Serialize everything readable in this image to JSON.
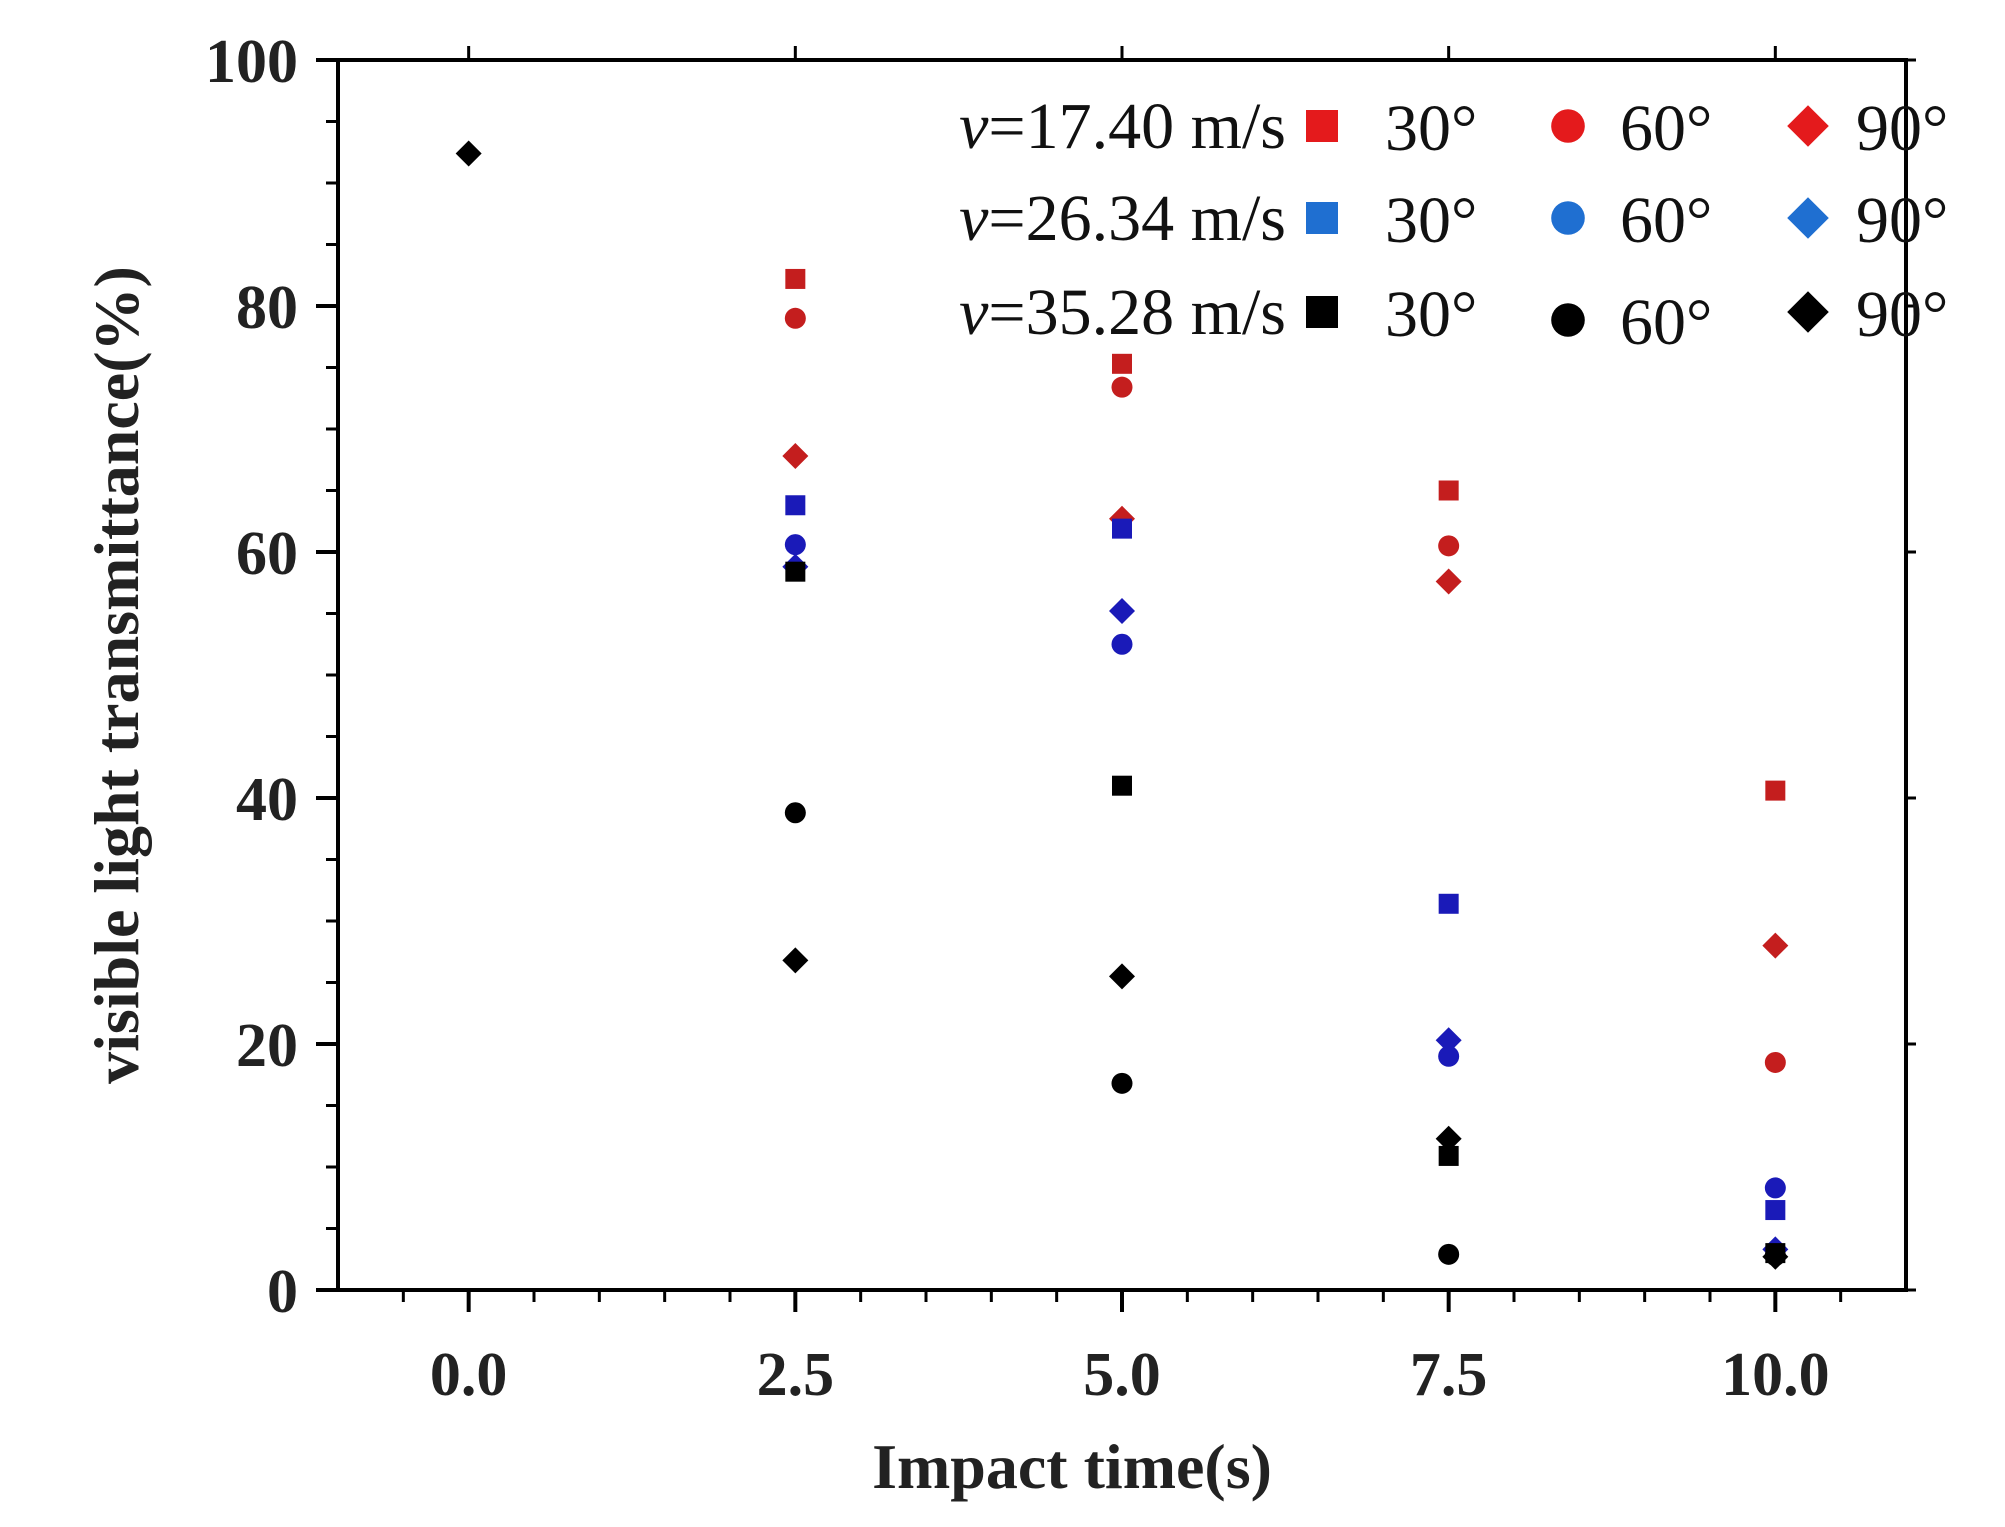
{
  "chart_data": {
    "type": "scatter",
    "title": "",
    "xlabel": "Impact time(s)",
    "ylabel": "visible light transmittance(%)",
    "xlim": [
      -1.0,
      11.0
    ],
    "ylim": [
      0,
      100
    ],
    "x_ticks": [
      "0.0",
      "2.5",
      "5.0",
      "7.5",
      "10.0"
    ],
    "x_tick_values": [
      0,
      2.5,
      5,
      7.5,
      10
    ],
    "y_ticks": [
      "0",
      "20",
      "40",
      "60",
      "80",
      "100"
    ],
    "y_tick_values": [
      0,
      20,
      40,
      60,
      80,
      100
    ],
    "legend_position": "top-right",
    "legend_rows": [
      {
        "prefix": "v",
        "label": "=17.40 m/s",
        "color": "#e41a1c",
        "entries": [
          {
            "marker": "square",
            "angle": "30°"
          },
          {
            "marker": "circle",
            "angle": "60°"
          },
          {
            "marker": "diamond",
            "angle": "90°"
          }
        ]
      },
      {
        "prefix": "v",
        "label": "=26.34 m/s",
        "color": "#1f6fd1",
        "entries": [
          {
            "marker": "square",
            "angle": "30°"
          },
          {
            "marker": "circle",
            "angle": "60°"
          },
          {
            "marker": "diamond",
            "angle": "90°"
          }
        ]
      },
      {
        "prefix": "v",
        "label": "=35.28 m/s",
        "color": "#000000",
        "entries": [
          {
            "marker": "square",
            "angle": "30°"
          },
          {
            "marker": "circle",
            "angle": "60°"
          },
          {
            "marker": "diamond",
            "angle": "90°"
          }
        ]
      }
    ],
    "series": [
      {
        "name": "v=17.40 m/s 30°",
        "marker": "square",
        "color": "#c41e1e",
        "x": [
          2.5,
          5,
          7.5,
          10
        ],
        "y": [
          82.2,
          75.3,
          65.0,
          40.6
        ]
      },
      {
        "name": "v=17.40 m/s 60°",
        "marker": "circle",
        "color": "#c41e1e",
        "x": [
          2.5,
          5,
          7.5,
          10
        ],
        "y": [
          79.0,
          73.4,
          60.5,
          18.5
        ]
      },
      {
        "name": "v=17.40 m/s 90°",
        "marker": "diamond",
        "color": "#c41e1e",
        "x": [
          2.5,
          5,
          7.5,
          10
        ],
        "y": [
          67.8,
          62.7,
          57.6,
          28.0
        ]
      },
      {
        "name": "v=26.34 m/s 30°",
        "marker": "square",
        "color": "#1a1ab8",
        "x": [
          2.5,
          5,
          7.5,
          10
        ],
        "y": [
          63.8,
          61.9,
          31.4,
          6.5
        ]
      },
      {
        "name": "v=26.34 m/s 60°",
        "marker": "circle",
        "color": "#1a1ab8",
        "x": [
          2.5,
          5,
          7.5,
          10
        ],
        "y": [
          60.6,
          52.5,
          19.0,
          8.3
        ]
      },
      {
        "name": "v=26.34 m/s 90°",
        "marker": "diamond",
        "color": "#1a1ab8",
        "x": [
          2.5,
          5,
          7.5,
          10
        ],
        "y": [
          58.8,
          55.2,
          20.3,
          3.3
        ]
      },
      {
        "name": "v=35.28 m/s 30°",
        "marker": "square",
        "color": "#000000",
        "x": [
          2.5,
          5,
          7.5,
          10
        ],
        "y": [
          58.4,
          41.0,
          10.9,
          3.0
        ]
      },
      {
        "name": "v=35.28 m/s 60°",
        "marker": "circle",
        "color": "#000000",
        "x": [
          2.5,
          5,
          7.5,
          10
        ],
        "y": [
          38.8,
          16.8,
          2.9,
          2.8
        ]
      },
      {
        "name": "v=35.28 m/s 90°",
        "marker": "diamond",
        "color": "#000000",
        "x": [
          0,
          2.5,
          5,
          7.5,
          10
        ],
        "y": [
          92.4,
          26.8,
          25.5,
          12.3,
          2.7
        ]
      }
    ]
  }
}
